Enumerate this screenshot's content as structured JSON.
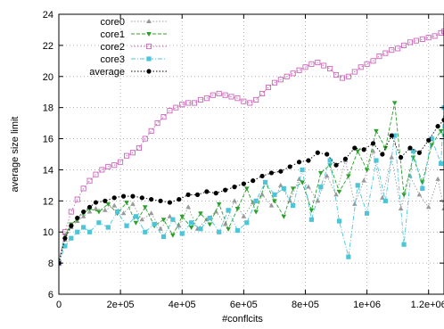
{
  "chart_data": {
    "type": "line",
    "title": "",
    "xlabel": "#conflcits",
    "ylabel": "average size limit",
    "xlim": [
      0,
      1250000
    ],
    "ylim": [
      6,
      24
    ],
    "xticks": [
      0,
      200000,
      400000,
      600000,
      800000,
      1000000,
      1200000
    ],
    "xtick_labels": [
      "0",
      "2e+05",
      "4e+05",
      "6e+05",
      "8e+05",
      "1e+06",
      "1.2e+06"
    ],
    "yticks": [
      6,
      8,
      10,
      12,
      14,
      16,
      18,
      20,
      22,
      24
    ],
    "ytick_labels": [
      "6",
      "8",
      "10",
      "12",
      "14",
      "16",
      "18",
      "20",
      "22",
      "24"
    ],
    "grid": true,
    "legend_position": "top-left",
    "series": [
      {
        "name": "core0",
        "color": "#999999",
        "marker": "triangle",
        "dash": "dotted",
        "x": [
          0,
          20000,
          40000,
          60000,
          80000,
          100000,
          120000,
          150000,
          180000,
          210000,
          240000,
          270000,
          300000,
          330000,
          360000,
          390000,
          420000,
          450000,
          480000,
          510000,
          540000,
          570000,
          600000,
          630000,
          660000,
          690000,
          720000,
          750000,
          780000,
          810000,
          840000,
          870000,
          900000,
          930000,
          960000,
          990000,
          1020000,
          1050000,
          1080000,
          1110000,
          1140000,
          1170000,
          1200000,
          1230000,
          1250000
        ],
        "y": [
          8.0,
          9.5,
          10.3,
          10.7,
          11.0,
          11.3,
          11.5,
          11.4,
          11.7,
          11.2,
          11.8,
          10.8,
          11.2,
          10.2,
          11.0,
          10.4,
          11.6,
          10.2,
          10.8,
          11.3,
          10.5,
          12.0,
          11.0,
          11.9,
          12.4,
          11.7,
          13.0,
          12.0,
          13.4,
          12.9,
          12.0,
          13.6,
          12.4,
          14.6,
          11.8,
          13.3,
          15.2,
          12.2,
          14.8,
          11.5,
          13.6,
          12.4,
          11.6,
          13.4,
          11.5
        ]
      },
      {
        "name": "core1",
        "color": "#2ca02c",
        "marker": "triangle-down",
        "dash": "dashed",
        "x": [
          0,
          20000,
          40000,
          60000,
          80000,
          100000,
          130000,
          160000,
          190000,
          220000,
          250000,
          280000,
          310000,
          340000,
          370000,
          400000,
          430000,
          460000,
          490000,
          520000,
          550000,
          580000,
          610000,
          640000,
          670000,
          700000,
          730000,
          760000,
          790000,
          820000,
          850000,
          880000,
          910000,
          940000,
          970000,
          1000000,
          1030000,
          1060000,
          1090000,
          1120000,
          1150000,
          1180000,
          1210000,
          1240000,
          1250000
        ],
        "y": [
          8.1,
          9.8,
          10.5,
          10.8,
          11.2,
          11.5,
          11.3,
          11.8,
          11.2,
          11.9,
          10.6,
          11.6,
          10.4,
          10.8,
          9.8,
          11.0,
          10.3,
          11.2,
          10.5,
          11.8,
          10.2,
          11.5,
          12.8,
          11.3,
          13.2,
          12.0,
          11.0,
          12.8,
          13.2,
          11.4,
          13.8,
          14.3,
          12.6,
          13.6,
          15.2,
          14.0,
          16.5,
          15.4,
          18.3,
          12.4,
          14.8,
          13.2,
          15.6,
          16.5,
          16.2
        ]
      },
      {
        "name": "core2",
        "color": "#cc66bb",
        "marker": "square-open",
        "dash": "dotted",
        "x": [
          0,
          20000,
          40000,
          60000,
          80000,
          100000,
          120000,
          140000,
          160000,
          180000,
          200000,
          220000,
          240000,
          260000,
          280000,
          300000,
          320000,
          340000,
          360000,
          380000,
          400000,
          420000,
          440000,
          460000,
          480000,
          500000,
          520000,
          540000,
          560000,
          580000,
          600000,
          620000,
          640000,
          660000,
          680000,
          700000,
          720000,
          740000,
          760000,
          780000,
          800000,
          820000,
          840000,
          860000,
          880000,
          900000,
          920000,
          940000,
          960000,
          980000,
          1000000,
          1020000,
          1040000,
          1060000,
          1080000,
          1100000,
          1120000,
          1140000,
          1160000,
          1180000,
          1200000,
          1220000,
          1240000,
          1250000
        ],
        "y": [
          8.0,
          10.0,
          11.3,
          12.1,
          12.8,
          13.3,
          13.7,
          14.0,
          14.2,
          14.3,
          14.5,
          14.9,
          15.1,
          15.4,
          16.0,
          16.5,
          17.0,
          17.4,
          17.8,
          18.0,
          18.2,
          18.3,
          18.3,
          18.5,
          18.6,
          18.8,
          18.9,
          18.8,
          18.7,
          18.6,
          18.4,
          18.3,
          18.5,
          18.9,
          19.3,
          19.6,
          19.8,
          20.0,
          20.2,
          20.4,
          20.6,
          20.8,
          20.9,
          20.7,
          20.5,
          20.1,
          19.9,
          20.0,
          20.3,
          20.6,
          20.8,
          21.0,
          21.3,
          21.5,
          21.7,
          21.8,
          22.0,
          22.2,
          22.3,
          22.4,
          22.5,
          22.6,
          22.8,
          22.9
        ]
      },
      {
        "name": "core3",
        "color": "#4cc5d8",
        "marker": "square",
        "dash": "dashdot",
        "x": [
          0,
          20000,
          40000,
          60000,
          80000,
          100000,
          130000,
          160000,
          190000,
          220000,
          250000,
          280000,
          310000,
          340000,
          370000,
          400000,
          430000,
          460000,
          490000,
          520000,
          550000,
          580000,
          610000,
          640000,
          670000,
          700000,
          730000,
          760000,
          790000,
          820000,
          850000,
          880000,
          910000,
          940000,
          970000,
          1000000,
          1030000,
          1060000,
          1090000,
          1120000,
          1150000,
          1180000,
          1210000,
          1240000,
          1250000
        ],
        "y": [
          8.0,
          9.1,
          9.6,
          10.0,
          10.3,
          10.0,
          10.6,
          10.3,
          11.3,
          10.4,
          11.0,
          10.0,
          10.5,
          9.7,
          10.8,
          9.9,
          10.6,
          10.2,
          10.9,
          10.0,
          11.4,
          10.1,
          10.6,
          12.0,
          13.2,
          12.4,
          12.8,
          11.7,
          14.0,
          10.8,
          12.9,
          14.6,
          10.7,
          8.4,
          13.0,
          11.2,
          14.6,
          12.0,
          16.2,
          9.2,
          15.2,
          12.8,
          16.0,
          14.4,
          18.0
        ]
      },
      {
        "name": "average",
        "color": "#000000",
        "marker": "circle",
        "dash": "dotted",
        "x": [
          0,
          20000,
          40000,
          60000,
          80000,
          100000,
          120000,
          150000,
          180000,
          210000,
          240000,
          270000,
          300000,
          330000,
          360000,
          390000,
          420000,
          450000,
          480000,
          510000,
          540000,
          570000,
          600000,
          630000,
          660000,
          690000,
          720000,
          750000,
          780000,
          810000,
          840000,
          870000,
          900000,
          930000,
          960000,
          990000,
          1020000,
          1050000,
          1080000,
          1110000,
          1140000,
          1170000,
          1200000,
          1230000,
          1250000
        ],
        "y": [
          8.0,
          9.6,
          10.4,
          10.9,
          11.3,
          11.6,
          11.9,
          12.0,
          12.2,
          12.3,
          12.3,
          12.2,
          12.1,
          12.0,
          11.9,
          12.1,
          12.4,
          12.4,
          12.6,
          12.5,
          12.7,
          12.9,
          13.1,
          13.3,
          13.6,
          13.8,
          13.9,
          14.2,
          14.5,
          14.6,
          15.1,
          15.0,
          14.3,
          14.7,
          15.4,
          15.3,
          15.7,
          15.0,
          16.2,
          14.8,
          15.4,
          15.1,
          15.9,
          16.8,
          17.2
        ]
      }
    ]
  }
}
